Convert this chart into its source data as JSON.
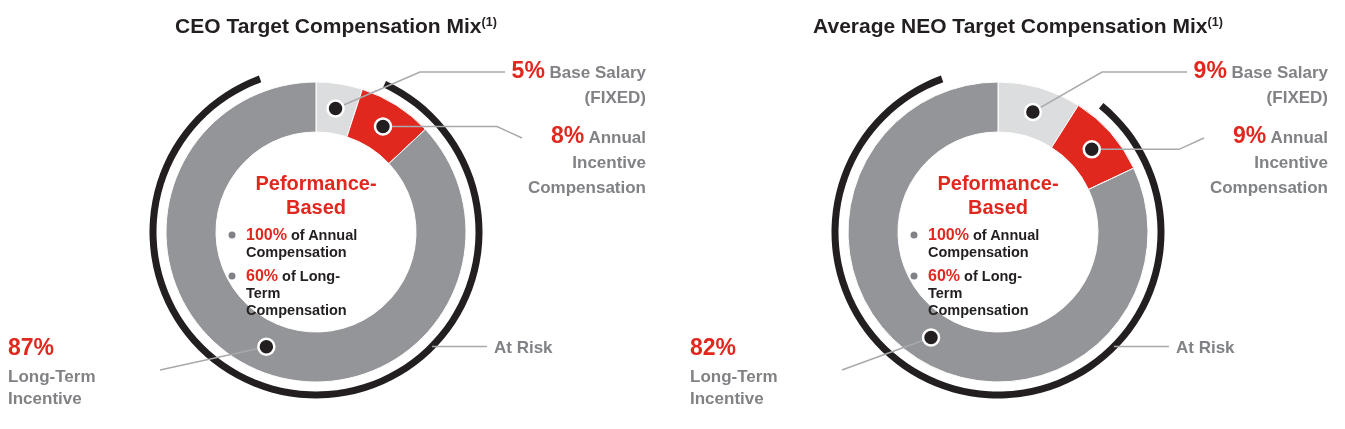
{
  "chart_data": [
    {
      "type": "donut",
      "title": "CEO Target Compensation Mix$^{(1)}$",
      "categories": [
        "Base Salary\n(FIXED)",
        "Annual\nIncentive\nCompensation",
        "Long-Term\nIncentive"
      ],
      "values": [
        5,
        8,
        87
      ],
      "colors": [
        "#dcddde",
        "#e0281f",
        "#939598"
      ],
      "value_labels": [
        "5%",
        "8%",
        "87%"
      ],
      "annotations": [
        "Peformance-\nBased",
        "100% of Annual\nCompensation",
        "60% of Long-\nTerm\nCompensation",
        "At Risk"
      ]
    },
    {
      "type": "donut",
      "title": "Average NEO Target Compensation Mix$^{(1)}$",
      "categories": [
        "Base Salary\n(FIXED)",
        "Annual\nIncentive\nCompensation",
        "Long-Term\nIncentive"
      ],
      "values": [
        9,
        9,
        82
      ],
      "colors": [
        "#dcddde",
        "#e0281f",
        "#939598"
      ],
      "value_labels": [
        "9%",
        "9%",
        "82%"
      ],
      "annotations": [
        "Peformance-\nBased",
        "100% of Annual\nCompensation",
        "60% of Long-\nTerm\nCompensation",
        "At Risk"
      ]
    }
  ]
}
